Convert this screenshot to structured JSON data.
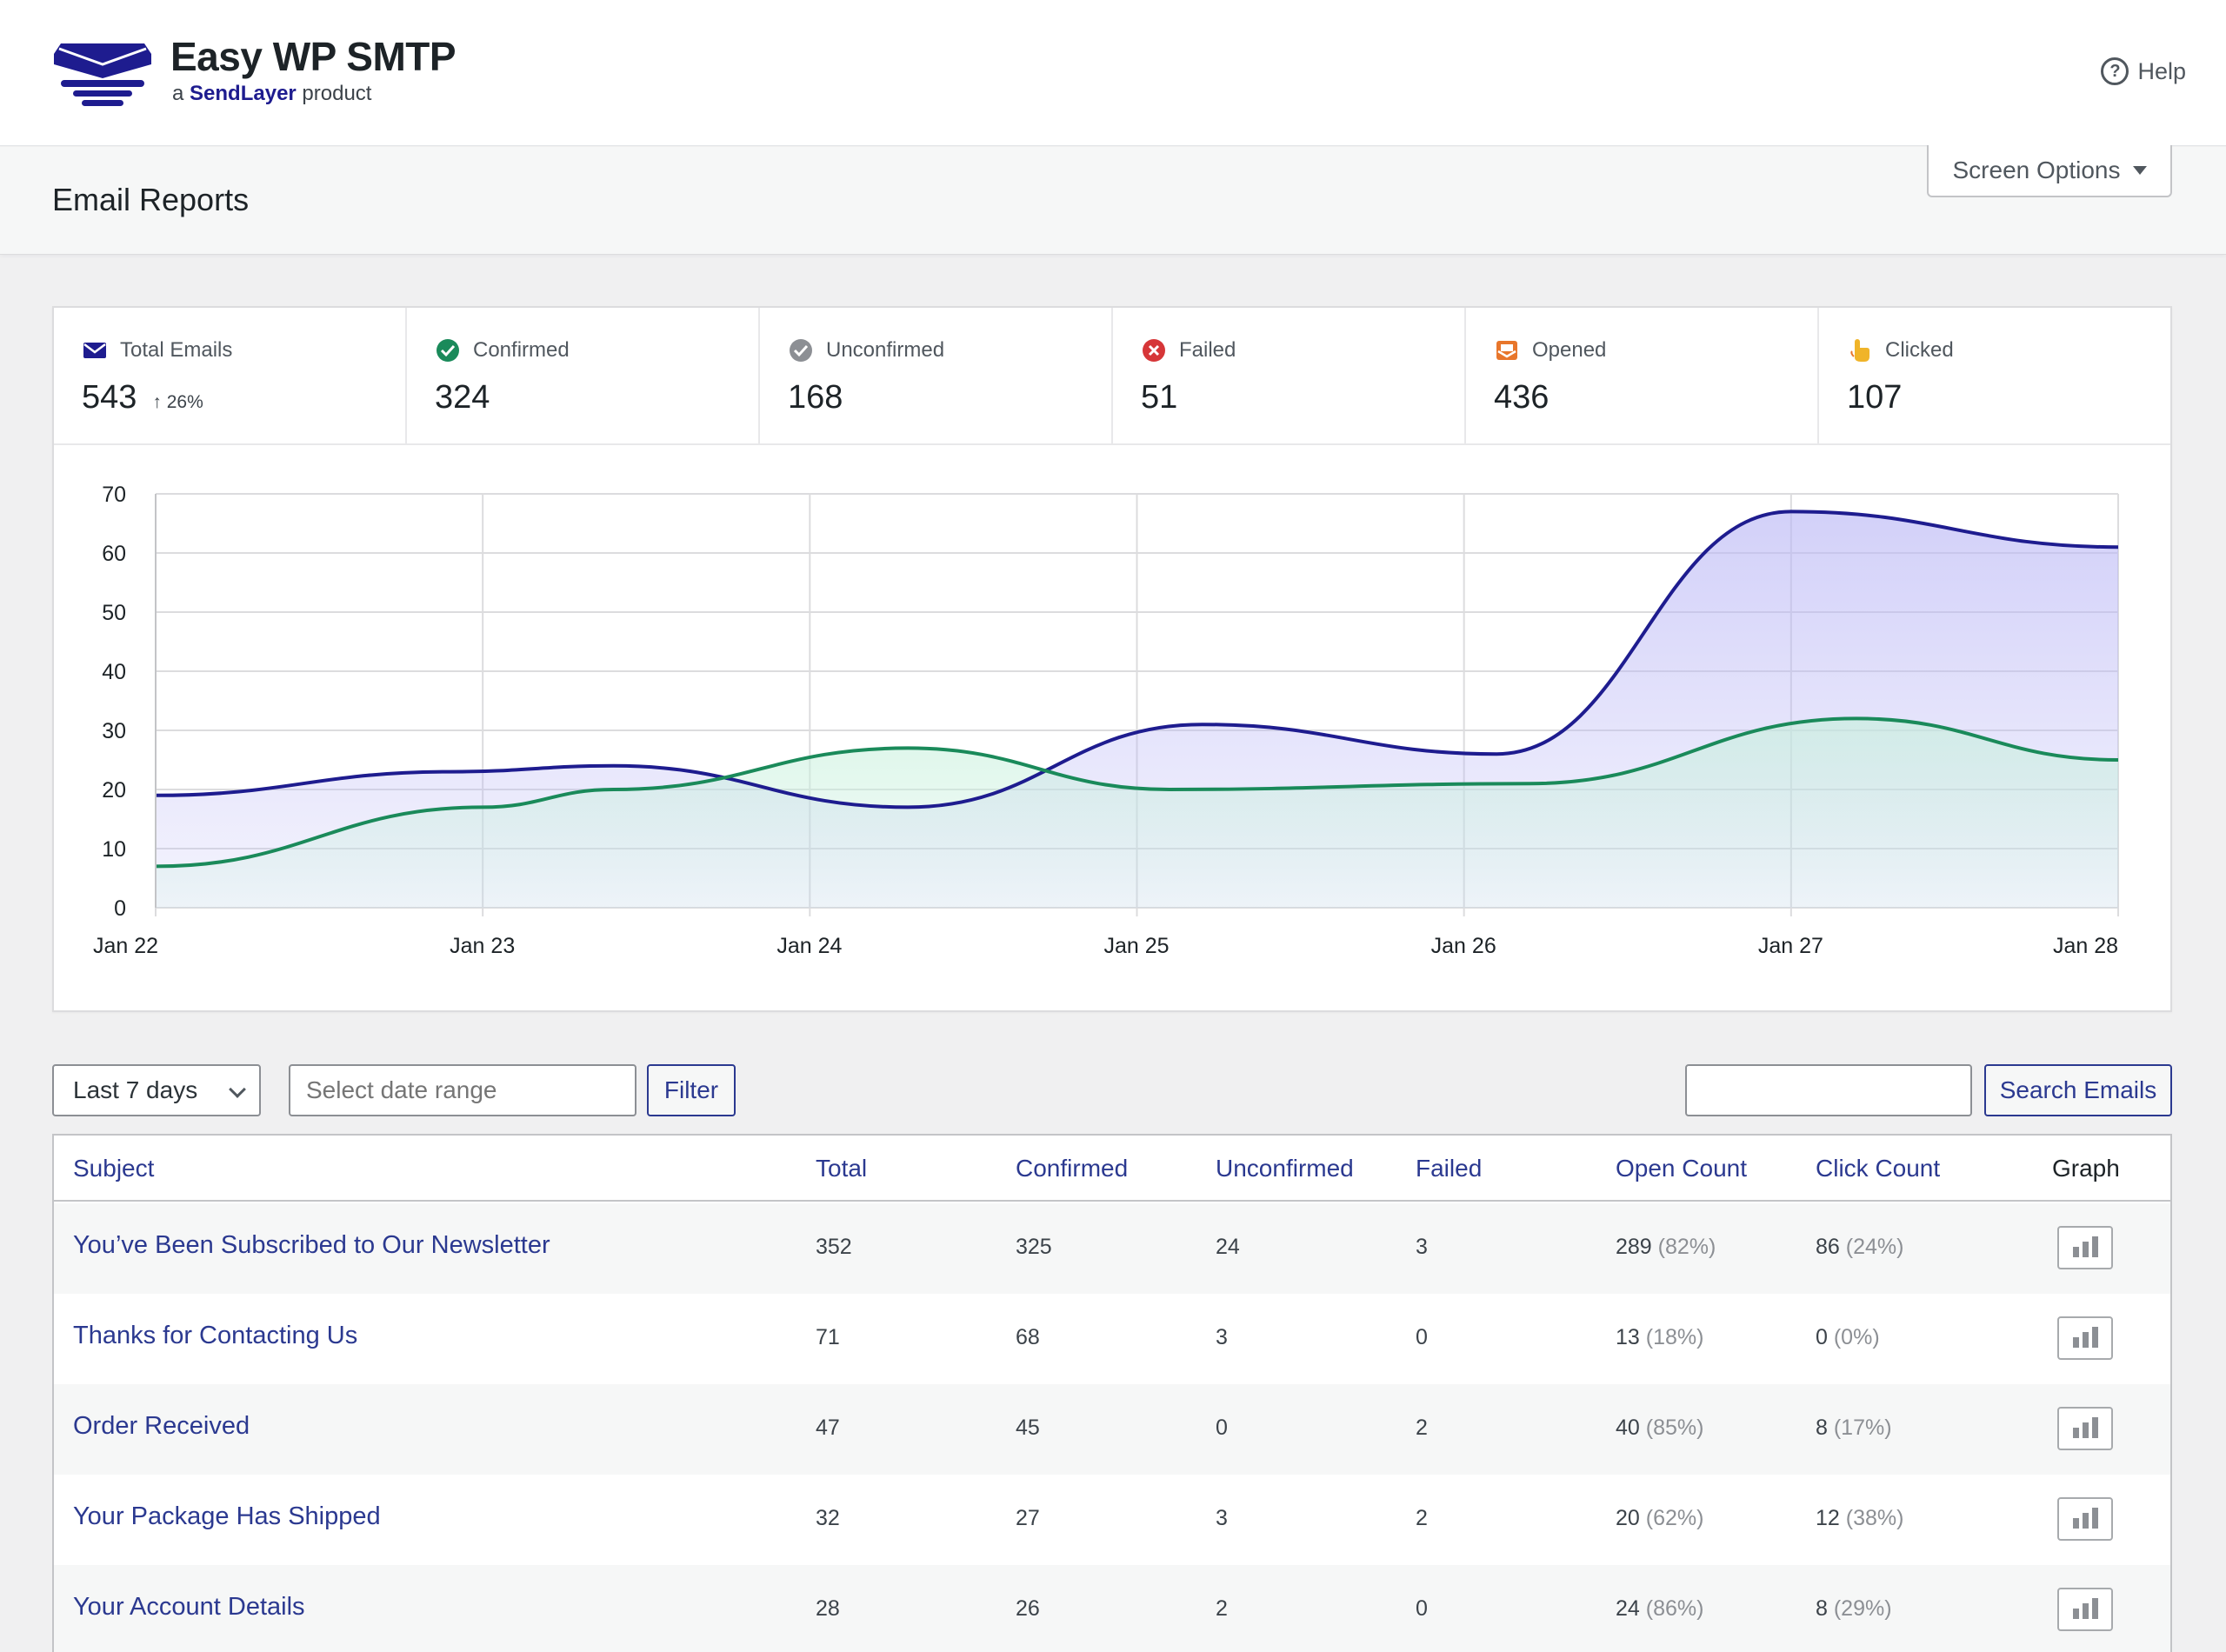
{
  "brand": {
    "name": "Easy WP SMTP",
    "sub_prefix": "a",
    "sub_brand": "SendLayer",
    "sub_suffix": "product"
  },
  "header": {
    "help_label": "Help"
  },
  "subheader": {
    "title": "Email Reports",
    "screen_options_label": "Screen Options"
  },
  "stats": [
    {
      "label": "Total Emails",
      "value": "543",
      "delta": "26%",
      "icon": "envelope-icon",
      "color": "#1e1c8f"
    },
    {
      "label": "Confirmed",
      "value": "324",
      "icon": "check-circle-icon",
      "color": "#1a8a5a"
    },
    {
      "label": "Unconfirmed",
      "value": "168",
      "icon": "check-circle-gray-icon",
      "color": "#8c8f94"
    },
    {
      "label": "Failed",
      "value": "51",
      "icon": "x-circle-icon",
      "color": "#d63638"
    },
    {
      "label": "Opened",
      "value": "436",
      "icon": "open-envelope-icon",
      "color": "#e8762b"
    },
    {
      "label": "Clicked",
      "value": "107",
      "icon": "pointer-hand-icon",
      "color": "#f0b429"
    }
  ],
  "chart_data": {
    "type": "area",
    "categories": [
      "Jan 22",
      "Jan 23",
      "Jan 24",
      "Jan 25",
      "Jan 26",
      "Jan 27",
      "Jan 28"
    ],
    "yticks": [
      0,
      10,
      20,
      30,
      40,
      50,
      60,
      70
    ],
    "ylim": [
      0,
      70
    ],
    "grid": true,
    "series": [
      {
        "values": [
          19,
          23,
          24,
          17,
          31,
          26,
          67,
          61
        ],
        "x": [
          0,
          0.9,
          1.4,
          2.3,
          3.2,
          4.1,
          5.0,
          6.0
        ],
        "color": "#1e1c8f",
        "fill": "#b9b6f5"
      },
      {
        "values": [
          7,
          17,
          20,
          27,
          20,
          21,
          32,
          25
        ],
        "x": [
          0,
          1.0,
          1.4,
          2.3,
          3.1,
          4.2,
          5.2,
          6.0
        ],
        "color": "#1a8a5a",
        "fill": "#c7f0dc"
      }
    ]
  },
  "controls": {
    "range_label": "Last 7 days",
    "date_placeholder": "Select date range",
    "filter_label": "Filter",
    "search_value": "",
    "search_label": "Search Emails"
  },
  "table": {
    "columns": [
      "Subject",
      "Total",
      "Confirmed",
      "Unconfirmed",
      "Failed",
      "Open Count",
      "Click Count",
      "Graph"
    ],
    "rows": [
      {
        "subject": "You’ve Been Subscribed to Our Newsletter",
        "total": "352",
        "confirmed": "325",
        "unconfirmed": "24",
        "failed": "3",
        "open": "289",
        "open_pct": "(82%)",
        "click": "86",
        "click_pct": "(24%)"
      },
      {
        "subject": "Thanks for Contacting Us",
        "total": "71",
        "confirmed": "68",
        "unconfirmed": "3",
        "failed": "0",
        "open": "13",
        "open_pct": "(18%)",
        "click": "0",
        "click_pct": "(0%)"
      },
      {
        "subject": "Order Received",
        "total": "47",
        "confirmed": "45",
        "unconfirmed": "0",
        "failed": "2",
        "open": "40",
        "open_pct": "(85%)",
        "click": "8",
        "click_pct": "(17%)"
      },
      {
        "subject": "Your Package Has Shipped",
        "total": "32",
        "confirmed": "27",
        "unconfirmed": "3",
        "failed": "2",
        "open": "20",
        "open_pct": "(62%)",
        "click": "12",
        "click_pct": "(38%)"
      },
      {
        "subject": "Your Account Details",
        "total": "28",
        "confirmed": "26",
        "unconfirmed": "2",
        "failed": "0",
        "open": "24",
        "open_pct": "(86%)",
        "click": "8",
        "click_pct": "(29%)"
      }
    ]
  }
}
